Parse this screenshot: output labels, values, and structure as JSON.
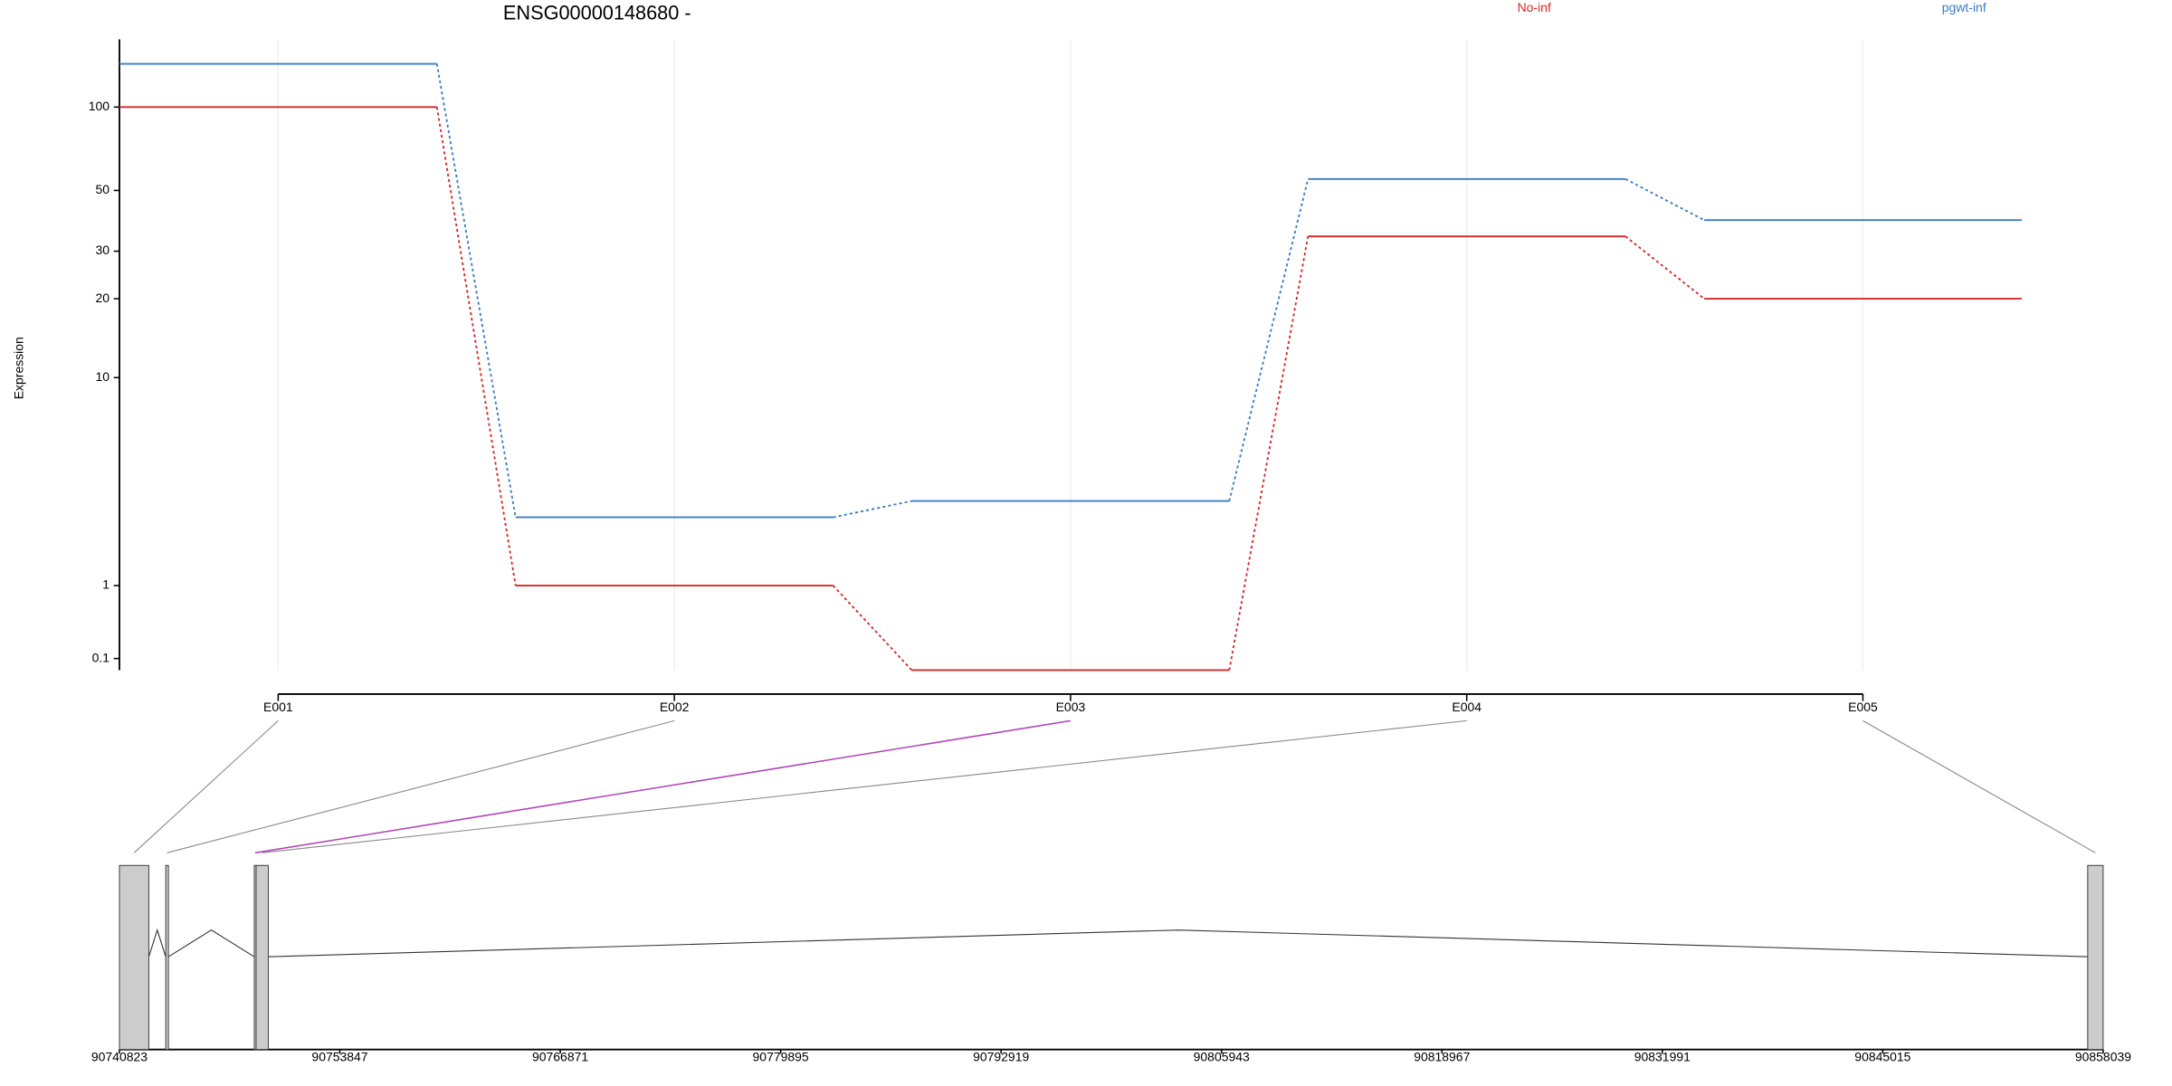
{
  "chart_data": {
    "type": "line",
    "title": "ENSG00000148680 -",
    "y_label": "Expression",
    "categories": [
      "E001",
      "E002",
      "E003",
      "E004",
      "E005"
    ],
    "series": [
      {
        "name": "No-inf",
        "color": "#d62728",
        "values": [
          100,
          1.0,
          0,
          34,
          20
        ]
      },
      {
        "name": "pgwt-inf",
        "color": "#3a7dc4",
        "values": [
          143,
          2.5,
          3.0,
          55,
          39
        ]
      }
    ],
    "ylim": [
      0,
      175
    ],
    "yticks": [
      0.1,
      1,
      10,
      20,
      30,
      50,
      100
    ],
    "yscale": "log1p",
    "grid": true,
    "highlight_index": 2,
    "highlight_color": "#b044b8",
    "gene_model": {
      "xlim": [
        90740823,
        90858039
      ],
      "xticks": [
        90740823,
        90753847,
        90766871,
        90779895,
        90792919,
        90805943,
        90818967,
        90831991,
        90845015,
        90858039
      ],
      "exons": [
        [
          90740823,
          90742560
        ],
        [
          90743560,
          90743720
        ],
        [
          90748790,
          90748900
        ],
        [
          90748900,
          90749620
        ],
        [
          90857125,
          90858039
        ]
      ]
    }
  }
}
